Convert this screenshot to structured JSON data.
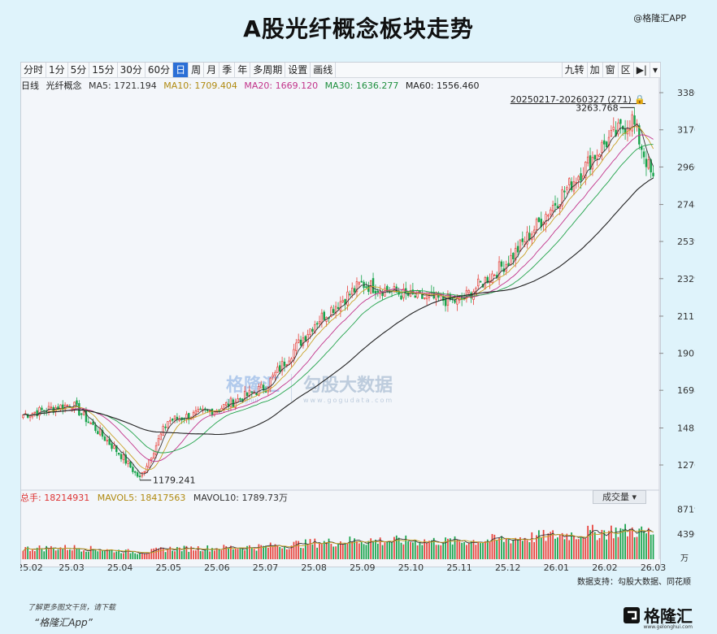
{
  "title": "A股光纤概念板块走势",
  "brand_tag": "@格隆汇APP",
  "toolbar": {
    "left": [
      "分时",
      "1分",
      "5分",
      "15分",
      "30分",
      "60分",
      "日",
      "周",
      "月",
      "季",
      "年",
      "多周期",
      "设置",
      "画线"
    ],
    "active_index": 6,
    "right": [
      "九转",
      "加",
      "窗",
      "区",
      "▶|",
      "▾"
    ]
  },
  "indicator_line": {
    "period": "日线",
    "name": "光纤概念",
    "ma5": "MA5: 1721.194",
    "ma10": "MA10: 1709.404",
    "ma20": "MA20: 1669.120",
    "ma30": "MA30: 1636.277",
    "ma60": "MA60: 1556.460"
  },
  "range_label": "20250217-20260327 (271)",
  "volume_info": {
    "total": "总手: 18214931",
    "mavol5": "MAVOL5: 18417563",
    "mavol10": "MAVOL10: 1789.73万"
  },
  "volume_button": "成交量",
  "source": "数据支持：勾股大数据、同花顺",
  "footer_note": "了解更多图文干货，请下载",
  "footer_app": "“格隆汇App”",
  "footer_logo": "格隆汇",
  "footer_logo_sub": "www.gelonghui.com",
  "watermark": {
    "left": "格隆汇",
    "left_sub": "gelonghui",
    "right": "勾股大数据",
    "right_sub": "www.gogudata.com"
  },
  "colors": {
    "up": "#e8413a",
    "down": "#16a34a",
    "ma5": "#333333",
    "ma10": "#c9a227",
    "ma20": "#c2338a",
    "ma30": "#22a34a",
    "ma60": "#222222",
    "active_tab": "#2b6fd6"
  },
  "chart_data": {
    "type": "candlestick",
    "date_range": [
      "2025-02-17",
      "2026-03-27"
    ],
    "bar_count": 271,
    "x_ticks": [
      "25.02",
      "25.03",
      "25.04",
      "25.05",
      "25.06",
      "25.07",
      "25.08",
      "25.09",
      "25.10",
      "25.11",
      "25.12",
      "26.01",
      "26.02",
      "26.03"
    ],
    "price_ticks": [
      3380,
      3170,
      2960,
      2748,
      2539,
      2329,
      2117,
      1907,
      1698,
      1485,
      1276
    ],
    "price_range": [
      1120,
      3380
    ],
    "volume_ticks": [
      "8719",
      "4396"
    ],
    "volume_unit": "万",
    "volume_range": [
      0,
      9500
    ],
    "annotations": {
      "high": "3263.768",
      "low": "1179.241"
    },
    "close_path": [
      {
        "month": "25.02",
        "close": 1560
      },
      {
        "month": "25.03",
        "close": 1620
      },
      {
        "month": "25.04",
        "close": 1330
      },
      {
        "month": "25.05",
        "close": 1525
      },
      {
        "month": "25.06",
        "close": 1590
      },
      {
        "month": "25.07",
        "close": 1720
      },
      {
        "month": "25.08",
        "close": 2080
      },
      {
        "month": "25.09",
        "close": 2300
      },
      {
        "month": "25.10",
        "close": 2230
      },
      {
        "month": "25.11",
        "close": 2200
      },
      {
        "month": "25.12",
        "close": 2430
      },
      {
        "month": "26.01",
        "close": 2760
      },
      {
        "month": "26.02",
        "close": 3090
      },
      {
        "month": "26.03",
        "close": 2880
      }
    ]
  }
}
